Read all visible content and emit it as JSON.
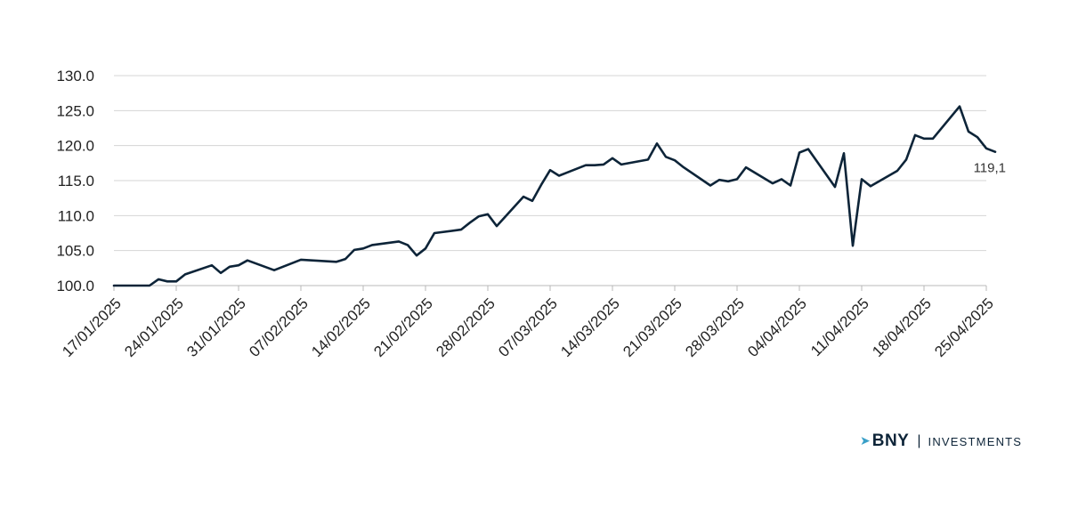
{
  "chart_data": {
    "type": "line",
    "title": "",
    "xlabel": "",
    "ylabel": "",
    "ylim": [
      100,
      130
    ],
    "y_ticks": [
      "100.0",
      "105.0",
      "110.0",
      "115.0",
      "120.0",
      "125.0",
      "130.0"
    ],
    "x_tick_labels": [
      "17/01/2025",
      "24/01/2025",
      "31/01/2025",
      "07/02/2025",
      "14/02/2025",
      "21/02/2025",
      "28/02/2025",
      "07/03/2025",
      "14/03/2025",
      "21/03/2025",
      "28/03/2025",
      "04/04/2025",
      "11/04/2025",
      "18/04/2025",
      "25/04/2025"
    ],
    "grid": true,
    "legend": "none",
    "end_label": "119,1",
    "series": [
      {
        "color": "#0d2438",
        "points": [
          [
            "17/01/2025",
            100.0
          ],
          [
            "20/01/2025",
            100.0
          ],
          [
            "21/01/2025",
            100.0
          ],
          [
            "22/01/2025",
            100.9
          ],
          [
            "23/01/2025",
            100.6
          ],
          [
            "24/01/2025",
            100.6
          ],
          [
            "25/01/2025",
            101.6
          ],
          [
            "28/01/2025",
            102.9
          ],
          [
            "29/01/2025",
            101.8
          ],
          [
            "30/01/2025",
            102.7
          ],
          [
            "31/01/2025",
            102.9
          ],
          [
            "01/02/2025",
            103.6
          ],
          [
            "04/02/2025",
            102.2
          ],
          [
            "07/02/2025",
            103.7
          ],
          [
            "11/02/2025",
            103.4
          ],
          [
            "12/02/2025",
            103.8
          ],
          [
            "13/02/2025",
            105.1
          ],
          [
            "14/02/2025",
            105.3
          ],
          [
            "15/02/2025",
            105.8
          ],
          [
            "18/02/2025",
            106.3
          ],
          [
            "19/02/2025",
            105.8
          ],
          [
            "20/02/2025",
            104.3
          ],
          [
            "21/02/2025",
            105.3
          ],
          [
            "22/02/2025",
            107.5
          ],
          [
            "25/02/2025",
            108.0
          ],
          [
            "26/02/2025",
            109.0
          ],
          [
            "27/02/2025",
            109.9
          ],
          [
            "28/02/2025",
            110.2
          ],
          [
            "01/03/2025",
            108.5
          ],
          [
            "04/03/2025",
            112.7
          ],
          [
            "05/03/2025",
            112.1
          ],
          [
            "06/03/2025",
            114.4
          ],
          [
            "07/03/2025",
            116.5
          ],
          [
            "08/03/2025",
            115.7
          ],
          [
            "11/03/2025",
            117.2
          ],
          [
            "12/03/2025",
            117.2
          ],
          [
            "13/03/2025",
            117.3
          ],
          [
            "14/03/2025",
            118.2
          ],
          [
            "15/03/2025",
            117.3
          ],
          [
            "18/03/2025",
            118.0
          ],
          [
            "19/03/2025",
            120.3
          ],
          [
            "20/03/2025",
            118.4
          ],
          [
            "21/03/2025",
            117.9
          ],
          [
            "22/03/2025",
            116.9
          ],
          [
            "25/03/2025",
            114.3
          ],
          [
            "26/03/2025",
            115.1
          ],
          [
            "27/03/2025",
            114.9
          ],
          [
            "28/03/2025",
            115.2
          ],
          [
            "29/03/2025",
            116.9
          ],
          [
            "01/04/2025",
            114.6
          ],
          [
            "02/04/2025",
            115.2
          ],
          [
            "03/04/2025",
            114.3
          ],
          [
            "04/04/2025",
            119.0
          ],
          [
            "05/04/2025",
            119.5
          ],
          [
            "08/04/2025",
            114.1
          ],
          [
            "09/04/2025",
            118.9
          ],
          [
            "10/04/2025",
            105.7
          ],
          [
            "11/04/2025",
            115.2
          ],
          [
            "12/04/2025",
            114.2
          ],
          [
            "15/04/2025",
            116.4
          ],
          [
            "16/04/2025",
            118.0
          ],
          [
            "17/04/2025",
            121.5
          ],
          [
            "18/04/2025",
            121.0
          ],
          [
            "19/04/2025",
            121.0
          ],
          [
            "22/04/2025",
            125.6
          ],
          [
            "23/04/2025",
            122.0
          ],
          [
            "24/04/2025",
            121.2
          ],
          [
            "25/04/2025",
            119.6
          ],
          [
            "26/04/2025",
            119.1
          ]
        ]
      }
    ]
  },
  "logo": {
    "mark": "➤",
    "brand": "BNY",
    "separator": "|",
    "subtitle": "INVESTMENTS",
    "mark_color": "#3aa0c8",
    "text_color": "#0d2438"
  }
}
